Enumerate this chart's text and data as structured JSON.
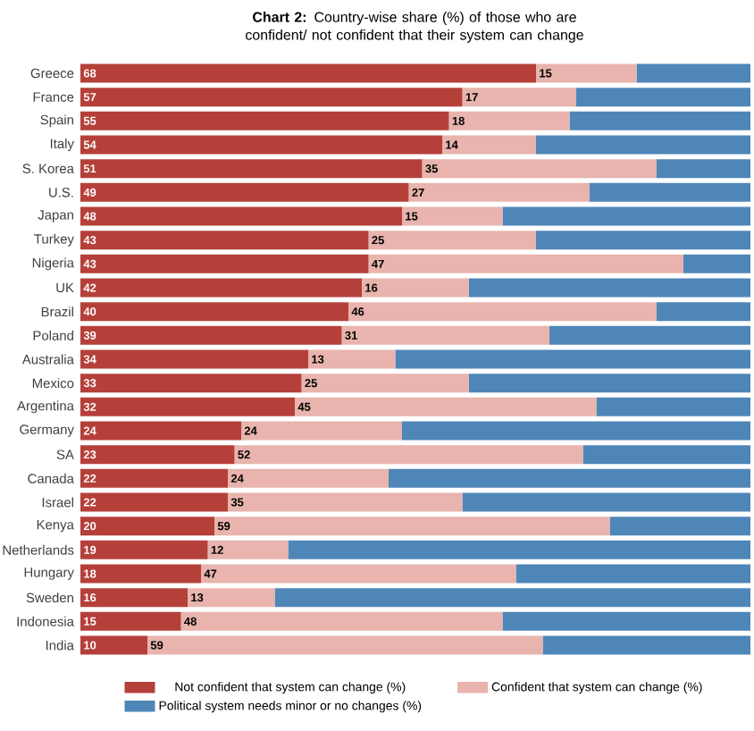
{
  "chart_data": {
    "type": "bar",
    "orientation": "horizontal",
    "stacked": true,
    "categories": [
      "Greece",
      "France",
      "Spain",
      "Italy",
      "S. Korea",
      "U.S.",
      "Japan",
      "Turkey",
      "Nigeria",
      "UK",
      "Brazil",
      "Poland",
      "Australia",
      "Mexico",
      "Argentina",
      "Germany",
      "SA",
      "Canada",
      "Israel",
      "Kenya",
      "Netherlands",
      "Hungary",
      "Sweden",
      "Indonesia",
      "India"
    ],
    "series": [
      {
        "name": "Not confident that system can change (%)",
        "color": "#b5403a",
        "values": [
          68,
          57,
          55,
          54,
          51,
          49,
          48,
          43,
          43,
          42,
          40,
          39,
          34,
          33,
          32,
          24,
          23,
          22,
          22,
          20,
          19,
          18,
          16,
          15,
          10
        ],
        "value_labels": [
          "68",
          "57",
          "55",
          "54",
          "51",
          "49",
          "48",
          "43",
          "43",
          "42",
          "40",
          "39",
          "34",
          "33",
          "32",
          "24",
          "23",
          "22",
          "22",
          "20",
          "19",
          "18",
          "16",
          "15",
          "10"
        ]
      },
      {
        "name": "Confident that system can change (%)",
        "color": "#e8b4ad",
        "values": [
          15,
          17,
          18,
          14,
          35,
          27,
          15,
          25,
          47,
          16,
          46,
          31,
          13,
          25,
          45,
          24,
          52,
          24,
          35,
          59,
          12,
          47,
          13,
          48,
          59
        ],
        "value_labels": [
          "15",
          "17",
          "18",
          "14",
          "35",
          "27",
          "15",
          "25",
          "47",
          "16",
          "46",
          "31",
          "13",
          "25",
          "45",
          "24",
          "52",
          "24",
          "35",
          "59",
          "12",
          "47",
          "13",
          "48",
          "59"
        ]
      },
      {
        "name": "Political system needs minor or no changes (%)",
        "color": "#4f86b8",
        "values": [
          17,
          26,
          27,
          32,
          14,
          24,
          37,
          32,
          10,
          42,
          14,
          30,
          53,
          42,
          23,
          52,
          25,
          54,
          43,
          21,
          69,
          35,
          71,
          37,
          31
        ]
      }
    ],
    "xlim": [
      0,
      100
    ],
    "tick_labels": "y",
    "legend": "bottom",
    "annotations": [
      "**Chart 2:** Country-wise share (%) of those who are confident/ not confident that their system can change"
    ]
  }
}
